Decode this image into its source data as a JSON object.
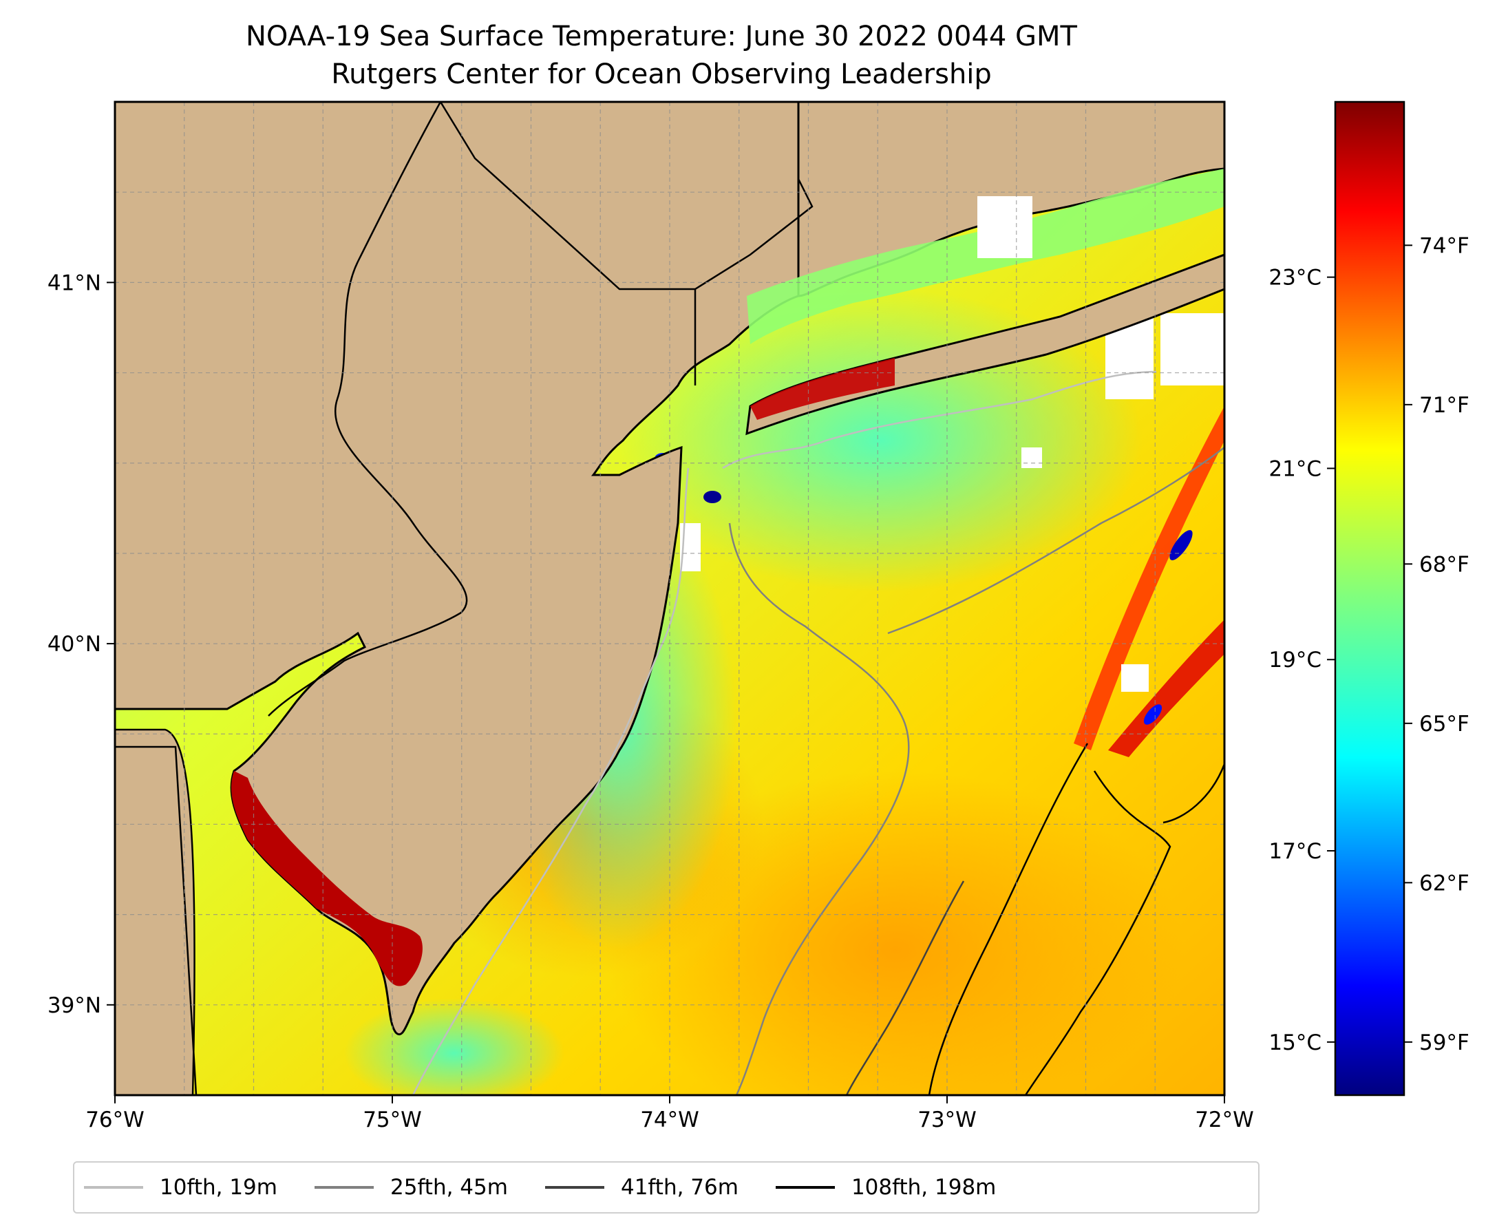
{
  "chart_data": {
    "type": "heatmap",
    "title": "NOAA-19 Sea Surface Temperature: June 30 2022 0044 GMT",
    "subtitle": "Rutgers Center for Ocean Observing Leadership",
    "x_ticks": [
      "76°W",
      "75°W",
      "74°W",
      "73°W",
      "72°W"
    ],
    "x_values": [
      -76,
      -75,
      -74,
      -73,
      -72
    ],
    "y_ticks": [
      "41°N",
      "40°N",
      "39°N"
    ],
    "y_values": [
      41,
      40,
      39
    ],
    "xlim": [
      -76,
      -72
    ],
    "ylim": [
      38.75,
      41.5
    ],
    "grid": true,
    "colorscale": "jet",
    "colorbar_c_ticks": [
      "23°C",
      "21°C",
      "19°C",
      "17°C",
      "15°C"
    ],
    "colorbar_c_values": [
      23,
      21,
      19,
      17,
      15
    ],
    "colorbar_f_ticks": [
      "74°F",
      "71°F",
      "68°F",
      "65°F",
      "62°F",
      "59°F"
    ],
    "colorbar_f_values": [
      74,
      71,
      68,
      65,
      62,
      59
    ],
    "colorbar_range_f": [
      58,
      76.7
    ],
    "legend_position": "bottom",
    "legend": [
      {
        "label": "10fth, 19m",
        "color": "#bfbfbf"
      },
      {
        "label": "25fth, 45m",
        "color": "#808080"
      },
      {
        "label": "41fth, 76m",
        "color": "#404040"
      },
      {
        "label": "108fth, 198m",
        "color": "#000000"
      }
    ],
    "land_color": "#d2b48c"
  }
}
